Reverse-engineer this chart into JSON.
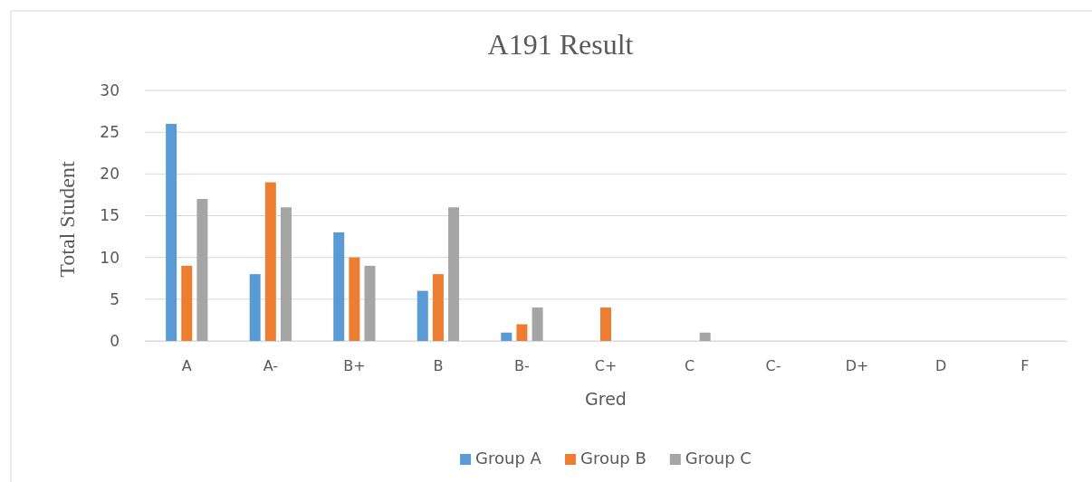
{
  "chart_data": {
    "type": "bar",
    "title": "A191 Result",
    "xlabel": "Gred",
    "ylabel": "Total Student",
    "categories": [
      "A",
      "A-",
      "B+",
      "B",
      "B-",
      "C+",
      "C",
      "C-",
      "D+",
      "D",
      "F"
    ],
    "series": [
      {
        "name": "Group A",
        "color": "#5b9bd5",
        "values": [
          26,
          8,
          13,
          6,
          1,
          0,
          0,
          0,
          0,
          0,
          0
        ]
      },
      {
        "name": "Group B",
        "color": "#ed7d31",
        "values": [
          9,
          19,
          10,
          8,
          2,
          4,
          0,
          0,
          0,
          0,
          0
        ]
      },
      {
        "name": "Group C",
        "color": "#a5a5a5",
        "values": [
          17,
          16,
          9,
          16,
          4,
          0,
          1,
          0,
          0,
          0,
          0
        ]
      }
    ],
    "ylim": [
      0,
      30
    ],
    "yticks": [
      0,
      5,
      10,
      15,
      20,
      25,
      30
    ],
    "grid": "y",
    "legend": "bottom"
  }
}
